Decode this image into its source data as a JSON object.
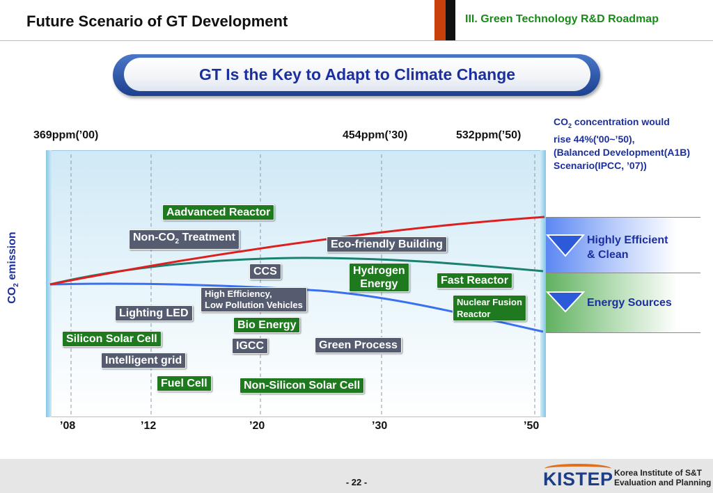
{
  "header": {
    "title": "Future Scenario of GT Development",
    "section": "III. Green Technology R&D Roadmap"
  },
  "banner": {
    "text": "GT Is the Key to Adapt to Climate Change"
  },
  "ppm_labels": [
    "369ppm(’00)",
    "454ppm(’30)",
    "532ppm(’50)"
  ],
  "note": {
    "line1_pre": "CO",
    "line1_sub": "2",
    "line1_post": " concentration would",
    "line2": "rise 44%('00~’50),",
    "line3": "(Balanced Development(A1B)",
    "line4": "Scenario(IPCC, ’07))"
  },
  "y_label": {
    "pre": "CO",
    "sub": "2",
    "post": " emission"
  },
  "x_ticks": [
    "’08",
    "’12",
    "’20",
    "’30",
    "’50"
  ],
  "technologies": {
    "advanced_reactor": "Aadvanced Reactor",
    "non_co2_pre": "Non-CO",
    "non_co2_sub": "2",
    "non_co2_post": " Treatment",
    "eco_building": "Eco-friendly Building",
    "ccs": "CCS",
    "hydrogen_1": "Hydrogen",
    "hydrogen_2": "Energy",
    "fast_reactor": "Fast Reactor",
    "high_eff_1": "High Efficiency,",
    "high_eff_2": "Low Pollution Vehicles",
    "nuclear_fusion_1": "Nuclear Fusion",
    "nuclear_fusion_2": "Reactor",
    "lighting_led": "Lighting LED",
    "bio_energy": "Bio Energy",
    "silicon_solar": "Silicon Solar Cell",
    "igcc": "IGCC",
    "green_process": "Green Process",
    "intelligent_grid": "Intelligent grid",
    "fuel_cell": "Fuel Cell",
    "non_silicon_solar": "Non-Silicon Solar Cell"
  },
  "right_panel": {
    "highly_efficient_1": "Highly Efficient",
    "highly_efficient_2": "& Clean",
    "energy_sources": "Energy Sources"
  },
  "footer": {
    "page": "- 22 -",
    "logo": "KISTEP",
    "org_line1": "Korea Institute of S&T",
    "org_line2": "Evaluation and Planning"
  },
  "colors": {
    "red_line": "#dd1f1f",
    "teal_line": "#1a8070",
    "blue_line": "#3a6ff0",
    "green_box": "#1f7a1f",
    "slate_box": "#555c70",
    "title_blue": "#1c2f9e"
  }
}
